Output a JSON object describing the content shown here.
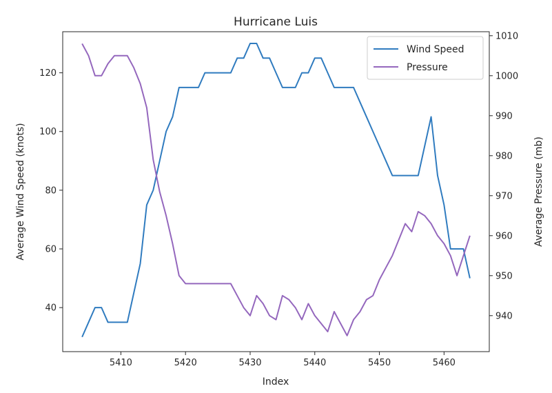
{
  "chart_data": {
    "type": "line",
    "title": "Hurricane Luis",
    "xlabel": "Index",
    "ylabel_left": "Average Wind Speed (knots)",
    "ylabel_right": "Average Pressure (mb)",
    "xlim": [
      5401,
      5467
    ],
    "ylim_left": [
      25,
      134
    ],
    "ylim_right": [
      931,
      1011
    ],
    "xticks": [
      5410,
      5420,
      5430,
      5440,
      5450,
      5460
    ],
    "yticks_left": [
      40,
      60,
      80,
      100,
      120
    ],
    "yticks_right": [
      940,
      950,
      960,
      970,
      980,
      990,
      1000,
      1010
    ],
    "grid": false,
    "legend_position": "top-right",
    "series": [
      {
        "name": "Wind Speed",
        "axis": "left",
        "color": "#2f7bbf",
        "x": [
          5404,
          5405,
          5406,
          5407,
          5408,
          5409,
          5410,
          5411,
          5412,
          5413,
          5414,
          5415,
          5416,
          5417,
          5418,
          5419,
          5420,
          5421,
          5422,
          5423,
          5424,
          5425,
          5426,
          5427,
          5428,
          5429,
          5430,
          5431,
          5432,
          5433,
          5434,
          5435,
          5436,
          5437,
          5438,
          5439,
          5440,
          5441,
          5442,
          5443,
          5444,
          5445,
          5446,
          5447,
          5448,
          5449,
          5450,
          5451,
          5452,
          5453,
          5454,
          5455,
          5456,
          5457,
          5458,
          5459,
          5460,
          5461,
          5462,
          5463,
          5464
        ],
        "values": [
          30,
          35,
          40,
          40,
          35,
          35,
          35,
          35,
          45,
          55,
          75,
          80,
          90,
          100,
          105,
          115,
          115,
          115,
          115,
          120,
          120,
          120,
          120,
          120,
          125,
          125,
          130,
          130,
          125,
          125,
          120,
          115,
          115,
          115,
          120,
          120,
          125,
          125,
          120,
          115,
          115,
          115,
          115,
          110,
          105,
          100,
          95,
          90,
          85,
          85,
          85,
          85,
          85,
          95,
          105,
          85,
          75,
          60,
          60,
          60,
          50
        ]
      },
      {
        "name": "Pressure",
        "axis": "right",
        "color": "#9467bd",
        "x": [
          5404,
          5405,
          5406,
          5407,
          5408,
          5409,
          5410,
          5411,
          5412,
          5413,
          5414,
          5415,
          5416,
          5417,
          5418,
          5419,
          5420,
          5421,
          5422,
          5423,
          5424,
          5425,
          5426,
          5427,
          5428,
          5429,
          5430,
          5431,
          5432,
          5433,
          5434,
          5435,
          5436,
          5437,
          5438,
          5439,
          5440,
          5441,
          5442,
          5443,
          5444,
          5445,
          5446,
          5447,
          5448,
          5449,
          5450,
          5451,
          5452,
          5453,
          5454,
          5455,
          5456,
          5457,
          5458,
          5459,
          5460,
          5461,
          5462,
          5463,
          5464
        ],
        "values": [
          1008,
          1005,
          1000,
          1000,
          1003,
          1005,
          1005,
          1005,
          1002,
          998,
          992,
          979,
          971,
          965,
          958,
          950,
          948,
          948,
          948,
          948,
          948,
          948,
          948,
          948,
          945,
          942,
          940,
          945,
          943,
          940,
          939,
          945,
          944,
          942,
          939,
          943,
          940,
          938,
          936,
          941,
          938,
          935,
          939,
          941,
          944,
          945,
          949,
          952,
          955,
          959,
          963,
          961,
          966,
          965,
          963,
          960,
          958,
          955,
          950,
          955,
          960
        ]
      }
    ]
  }
}
